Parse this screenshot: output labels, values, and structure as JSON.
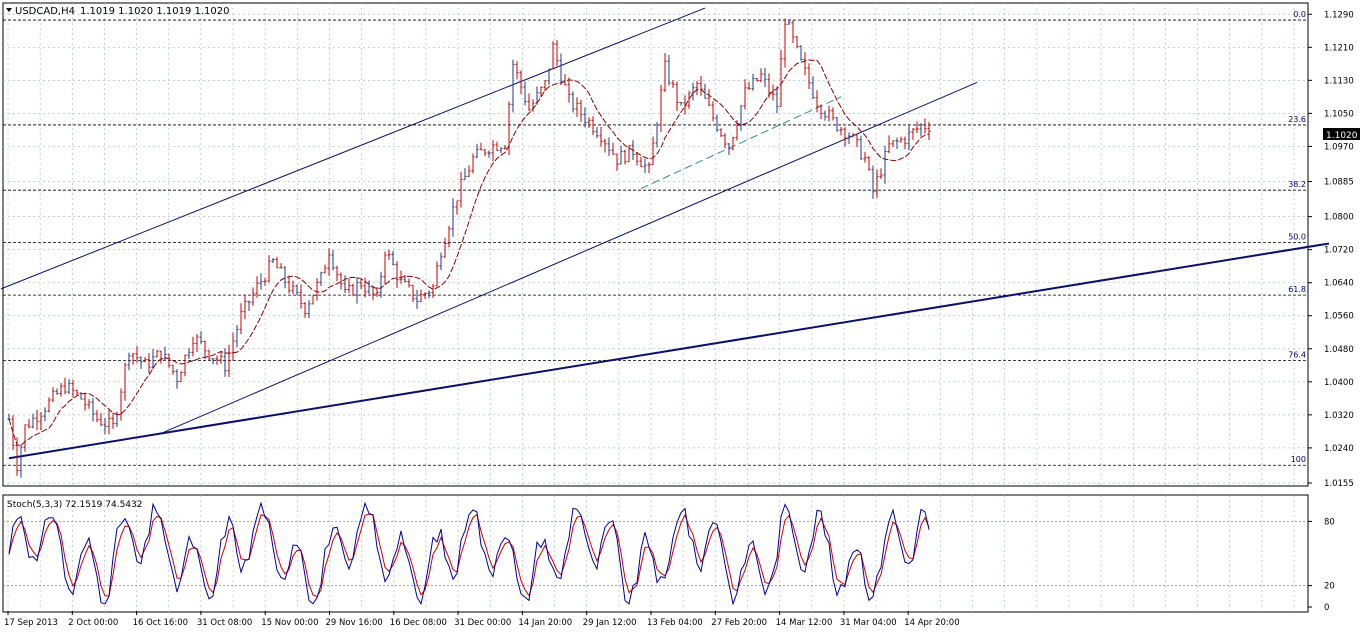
{
  "header": {
    "symbol": "USDCAD,H4",
    "ohlc": "1.1019 1.1020 1.1019 1.1020"
  },
  "price_badge": "1.1020",
  "indicator_label": "Stoch(5,3,3) 72.1519 74.5432",
  "colors": {
    "background": "#ffffff",
    "grid": "#a9c3c7",
    "axis": "#000000",
    "candle": "#cc0000",
    "candle_alt": "#1f3b8a",
    "ma": "#8b0000",
    "trend": "#0a0f6e",
    "fib": "#000000",
    "fib_label": "#000066",
    "stoch_main": "#000099",
    "stoch_signal": "#cc0000",
    "dashed_channel": "#2a8a8a",
    "badge_bg": "#000000",
    "badge_fg": "#ffffff"
  },
  "chart_data": {
    "type": "candlestick",
    "symbol": "USDCAD",
    "timeframe": "H4",
    "ylim": [
      1.0155,
      1.131
    ],
    "y_ticks": [
      "1.1290",
      "1.1210",
      "1.1130",
      "1.1050",
      "1.0970",
      "1.0885",
      "1.0800",
      "1.0720",
      "1.0640",
      "1.0560",
      "1.0480",
      "1.0400",
      "1.0320",
      "1.0240",
      "1.0155"
    ],
    "x_ticks": [
      "17 Sep 2013",
      "2 Oct 00:00",
      "16 Oct 16:00",
      "31 Oct 08:00",
      "15 Nov 00:00",
      "29 Nov 16:00",
      "16 Dec 08:00",
      "31 Dec 00:00",
      "14 Jan 20:00",
      "29 Jan 12:00",
      "13 Feb 04:00",
      "27 Feb 20:00",
      "14 Mar 12:00",
      "31 Mar 04:00",
      "14 Apr 20:00"
    ],
    "last_price": 1.102,
    "approx_close_path": [
      [
        0,
        1.031
      ],
      [
        2,
        1.02
      ],
      [
        4,
        1.029
      ],
      [
        8,
        1.033
      ],
      [
        14,
        1.039
      ],
      [
        18,
        1.036
      ],
      [
        22,
        1.031
      ],
      [
        26,
        1.029
      ],
      [
        30,
        1.048
      ],
      [
        34,
        1.044
      ],
      [
        38,
        1.047
      ],
      [
        42,
        1.041
      ],
      [
        46,
        1.051
      ],
      [
        50,
        1.047
      ],
      [
        54,
        1.044
      ],
      [
        58,
        1.056
      ],
      [
        62,
        1.063
      ],
      [
        66,
        1.069
      ],
      [
        70,
        1.063
      ],
      [
        74,
        1.058
      ],
      [
        78,
        1.065
      ],
      [
        80,
        1.072
      ],
      [
        84,
        1.061
      ],
      [
        88,
        1.064
      ],
      [
        92,
        1.06
      ],
      [
        94,
        1.072
      ],
      [
        98,
        1.064
      ],
      [
        102,
        1.06
      ],
      [
        106,
        1.063
      ],
      [
        108,
        1.072
      ],
      [
        112,
        1.085
      ],
      [
        116,
        1.094
      ],
      [
        120,
        1.097
      ],
      [
        124,
        1.098
      ],
      [
        126,
        1.117
      ],
      [
        130,
        1.106
      ],
      [
        134,
        1.112
      ],
      [
        136,
        1.121
      ],
      [
        140,
        1.108
      ],
      [
        144,
        1.104
      ],
      [
        148,
        1.1
      ],
      [
        152,
        1.094
      ],
      [
        156,
        1.096
      ],
      [
        160,
        1.091
      ],
      [
        164,
        1.116
      ],
      [
        168,
        1.106
      ],
      [
        172,
        1.112
      ],
      [
        176,
        1.104
      ],
      [
        180,
        1.097
      ],
      [
        184,
        1.11
      ],
      [
        188,
        1.114
      ],
      [
        192,
        1.107
      ],
      [
        194,
        1.128
      ],
      [
        198,
        1.117
      ],
      [
        202,
        1.108
      ],
      [
        206,
        1.103
      ],
      [
        210,
        1.1
      ],
      [
        214,
        1.094
      ],
      [
        216,
        1.086
      ],
      [
        220,
        1.097
      ],
      [
        224,
        1.099
      ],
      [
        228,
        1.102
      ],
      [
        230,
        1.102
      ]
    ],
    "fibonacci_levels": [
      {
        "label": "0.0",
        "value": 1.1276
      },
      {
        "label": "23.6",
        "value": 1.1022
      },
      {
        "label": "38.2",
        "value": 1.0864
      },
      {
        "label": "50.0",
        "value": 1.0737
      },
      {
        "label": "61.8",
        "value": 1.061
      },
      {
        "label": "76.4",
        "value": 1.0452
      },
      {
        "label": "100",
        "value": 1.0198
      }
    ],
    "stochastic": {
      "params": "5,3,3",
      "main": 72.1519,
      "signal": 74.5432,
      "levels": [
        80,
        20
      ],
      "ylim": [
        0,
        100
      ],
      "y_ticks": [
        "80",
        "20",
        "0"
      ]
    },
    "grid": true
  }
}
